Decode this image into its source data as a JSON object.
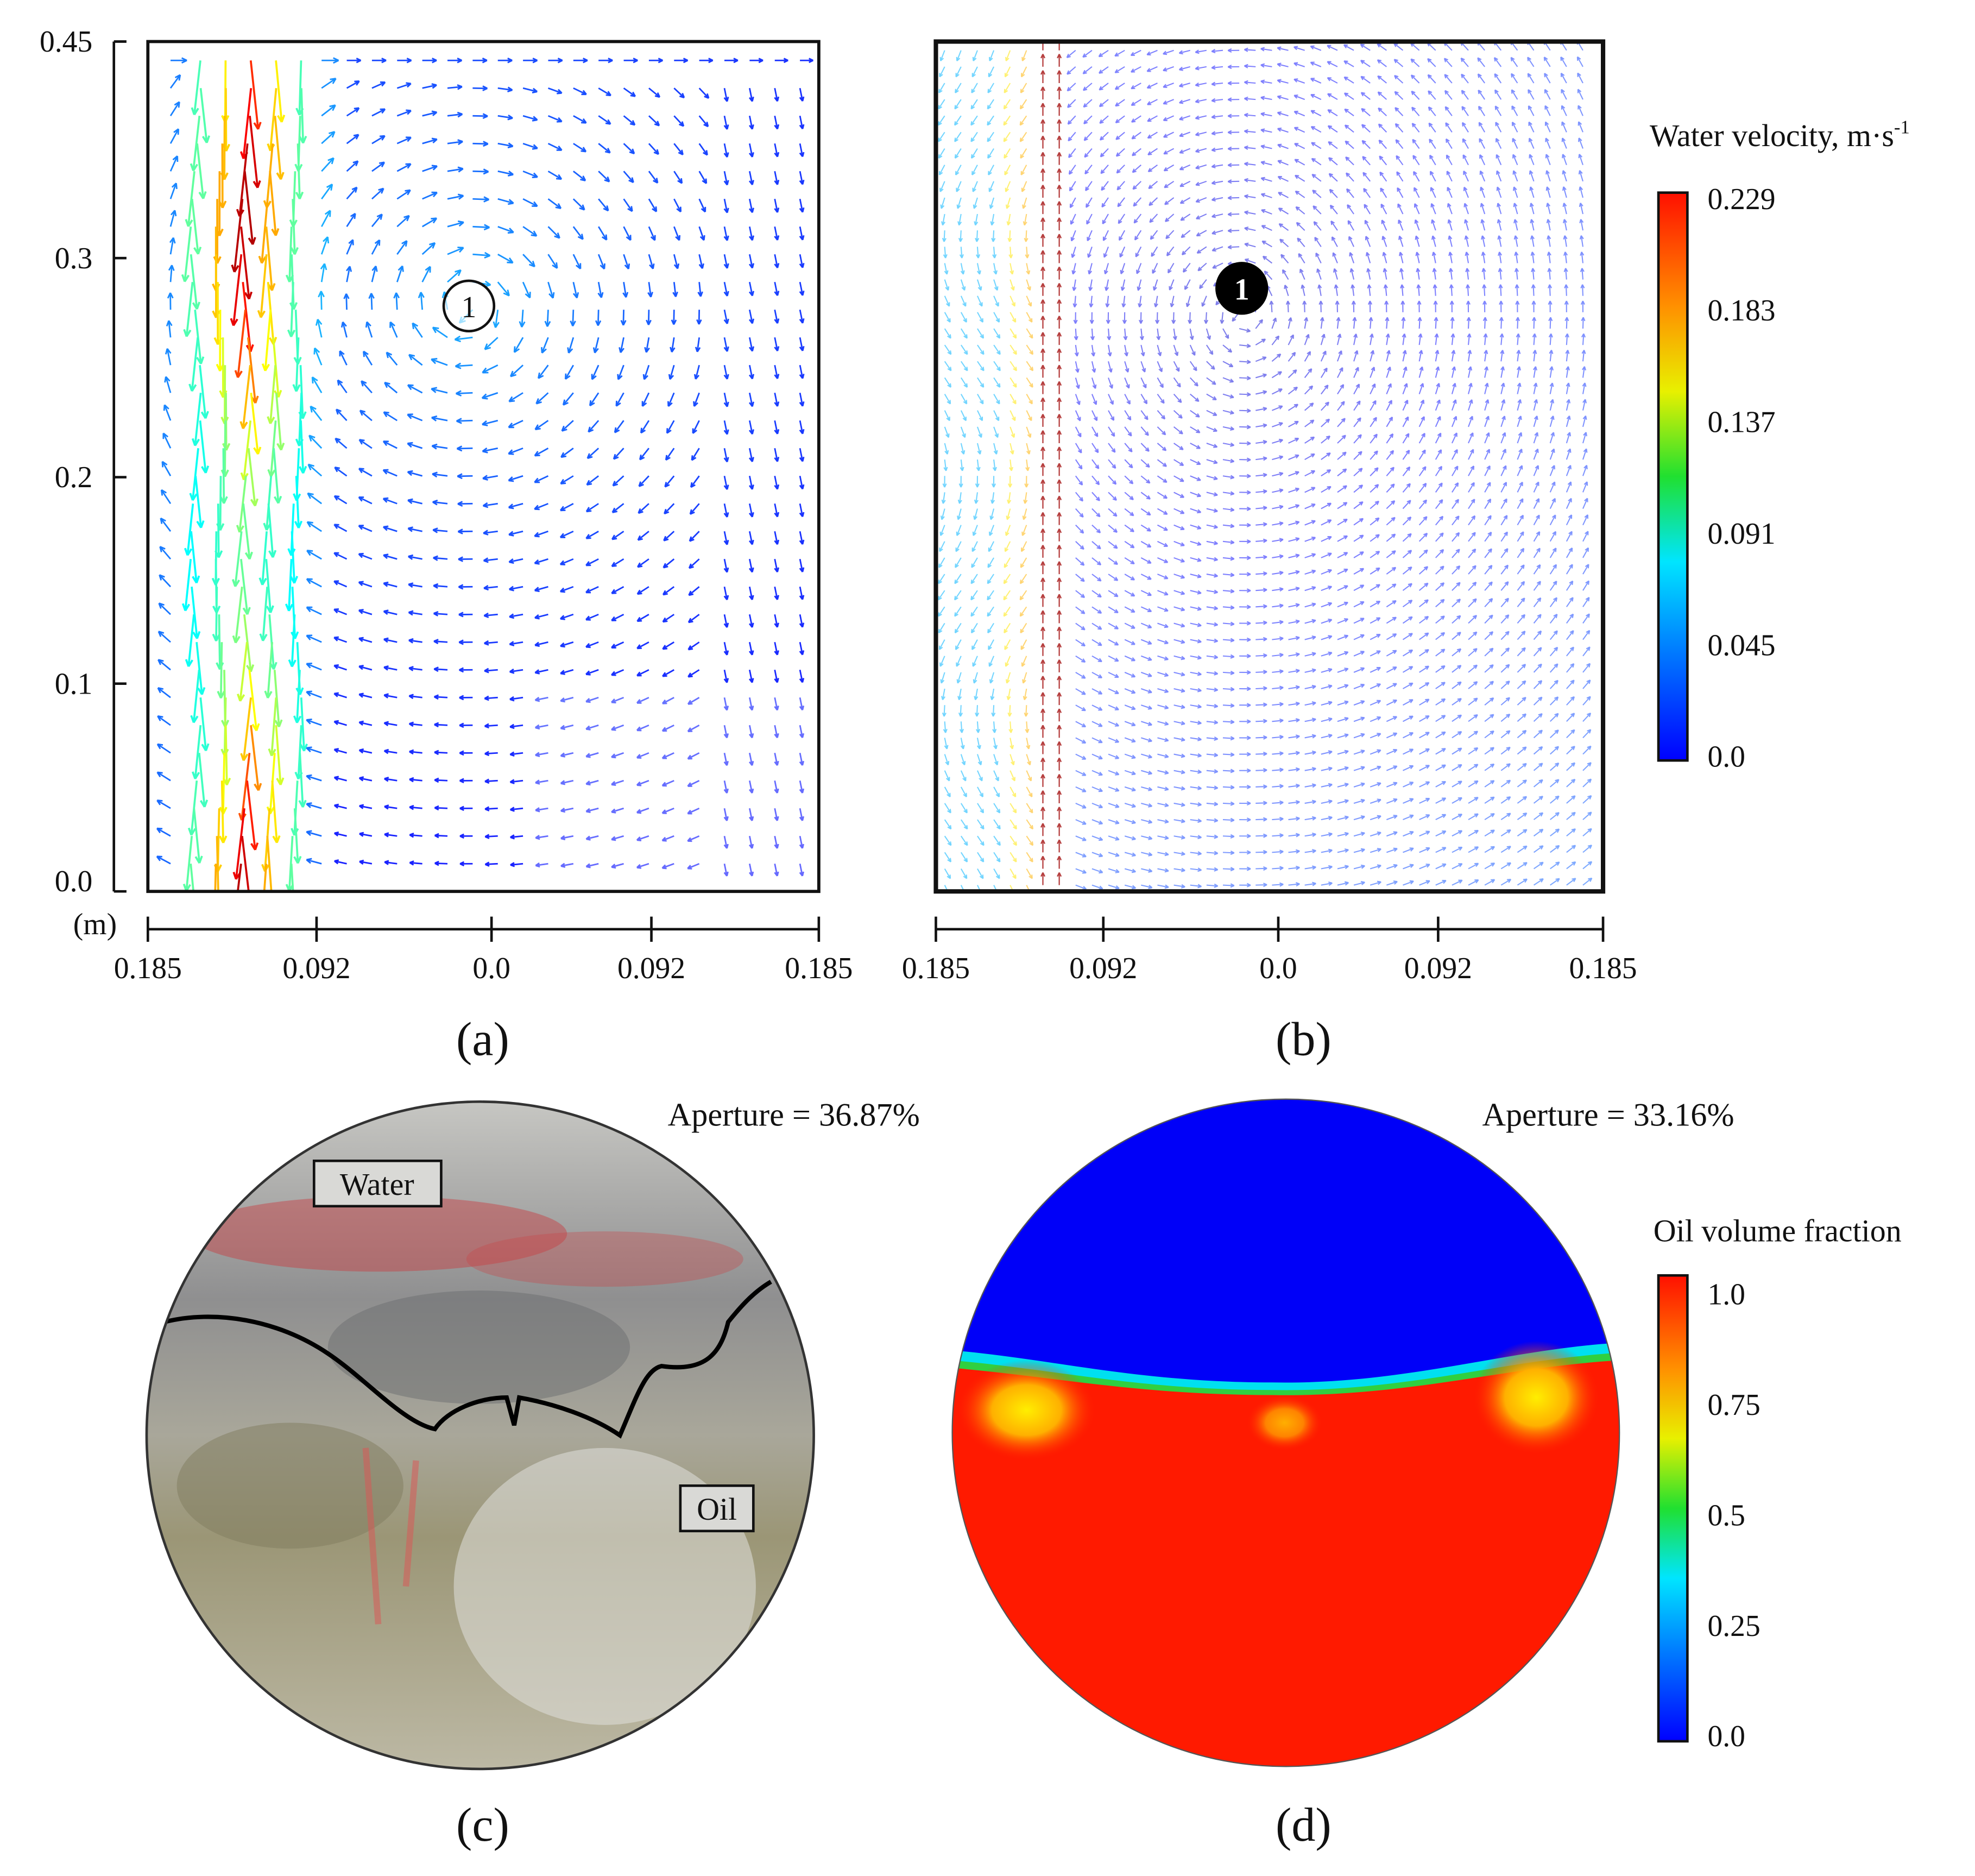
{
  "panels": [
    {
      "label": "(a)",
      "marker": "1",
      "y_ticks": [
        "0.45",
        "0.3",
        "0.2",
        "0.1",
        "0.0"
      ],
      "unit": "(m)",
      "x_ticks": [
        "0.185",
        "0.092",
        "0.0",
        "0.092",
        "0.185"
      ]
    },
    {
      "label": "(b)",
      "marker": "1",
      "x_ticks": [
        "0.185",
        "0.092",
        "0.0",
        "0.092",
        "0.185"
      ]
    },
    {
      "label": "(c)",
      "annotation": "Aperture = 36.87%",
      "tags": [
        "Water",
        "Oil"
      ]
    },
    {
      "label": "(d)",
      "annotation": "Aperture = 33.16%"
    }
  ],
  "colorbars": [
    {
      "title": "Water velocity, m·s",
      "superscript": "-1",
      "ticks": [
        "0.229",
        "0.183",
        "0.137",
        "0.091",
        "0.045",
        "0.0"
      ]
    },
    {
      "title": "Oil volume fraction",
      "ticks": [
        "1.0",
        "0.75",
        "0.5",
        "0.25",
        "0.0"
      ]
    }
  ]
}
